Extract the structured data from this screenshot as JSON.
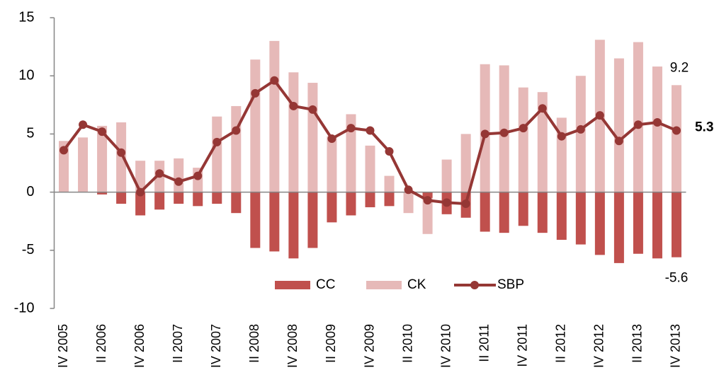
{
  "chart_data": {
    "type": "bar_line",
    "categories": [
      "IV 2005",
      null,
      "II 2006",
      null,
      "IV 2006",
      null,
      "II 2007",
      null,
      "IV 2007",
      null,
      "II 2008",
      null,
      "IV 2008",
      null,
      "II 2009",
      null,
      "IV 2009",
      null,
      "II 2010",
      null,
      "IV 2010",
      null,
      "II 2011",
      null,
      "IV 2011",
      null,
      "II 2012",
      null,
      "IV 2012",
      null,
      "II 2013",
      null,
      "IV 2013"
    ],
    "series": [
      {
        "name": "CC",
        "type": "bar",
        "color": "#c0504d",
        "values": [
          0,
          0,
          -0.2,
          -1.0,
          -2.0,
          -1.5,
          -1.0,
          -1.2,
          -1.0,
          -1.8,
          -4.8,
          -5.1,
          -5.7,
          -4.8,
          -2.6,
          -2.0,
          -1.3,
          -1.2,
          0,
          -0.5,
          -1.9,
          -2.2,
          -3.4,
          -3.5,
          -2.9,
          -3.5,
          -4.1,
          -4.5,
          -5.4,
          -6.1,
          -5.3,
          -5.7,
          -5.6
        ]
      },
      {
        "name": "CK",
        "type": "bar",
        "color": "#e6b9b8",
        "values": [
          4.4,
          4.7,
          5.7,
          6.0,
          2.7,
          2.7,
          2.9,
          2.1,
          6.5,
          7.4,
          11.4,
          13.0,
          10.3,
          9.4,
          4.8,
          6.7,
          4.0,
          1.4,
          -1.8,
          -3.6,
          2.8,
          5.0,
          11.0,
          10.9,
          9.0,
          8.6,
          6.4,
          10.0,
          13.1,
          11.5,
          12.9,
          10.8,
          9.2
        ]
      },
      {
        "name": "SBP",
        "type": "line",
        "color": "#953735",
        "values": [
          3.6,
          5.8,
          5.2,
          3.4,
          0,
          1.6,
          0.9,
          1.4,
          4.3,
          5.3,
          8.5,
          9.6,
          7.4,
          7.1,
          4.6,
          5.5,
          5.3,
          3.5,
          0.2,
          -0.7,
          -0.9,
          -1.0,
          5.0,
          5.1,
          5.5,
          7.2,
          4.8,
          5.4,
          6.6,
          4.4,
          5.8,
          6.0,
          5.3
        ]
      }
    ],
    "ylim": [
      -10,
      15
    ],
    "yticks": [
      -10,
      -5,
      0,
      5,
      10,
      15
    ],
    "grid": false,
    "legend": "bottom"
  }
}
